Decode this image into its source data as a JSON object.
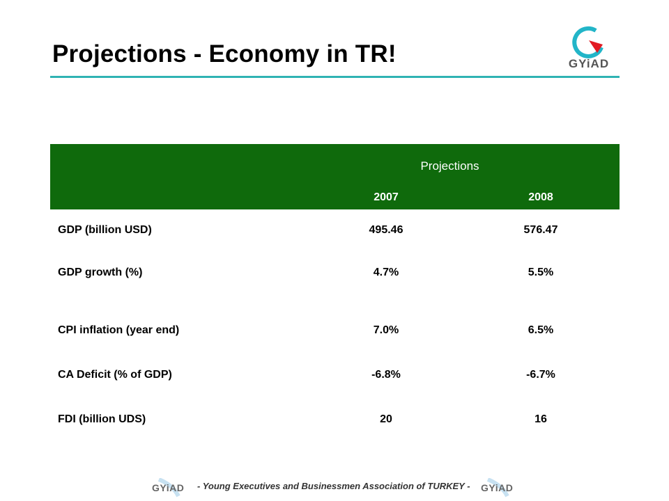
{
  "header": {
    "title": "Projections - Economy in TR!",
    "logo_text": "GYiAD"
  },
  "table": {
    "group_header": "Projections",
    "years": [
      "2007",
      "2008"
    ],
    "rows": [
      {
        "label": "GDP (billion USD)",
        "v2007": "495.46",
        "v2008": "576.47"
      },
      {
        "label": "GDP growth (%)",
        "v2007": "4.7%",
        "v2008": "5.5%"
      },
      {
        "label": "CPI inflation (year end)",
        "v2007": "7.0%",
        "v2008": "6.5%"
      },
      {
        "label": "CA Deficit (% of GDP)",
        "v2007": "-6.8%",
        "v2008": "-6.7%"
      },
      {
        "label": "FDI (billion UDS)",
        "v2007": "20",
        "v2008": "16"
      }
    ]
  },
  "footer": {
    "text": "- Young Executives and Businessmen Association of TURKEY -",
    "logo_left": "GYiAD",
    "logo_right": "GYiAD"
  },
  "colors": {
    "header_green": "#0f6a0c",
    "rule_teal": "#2fb3b3"
  }
}
